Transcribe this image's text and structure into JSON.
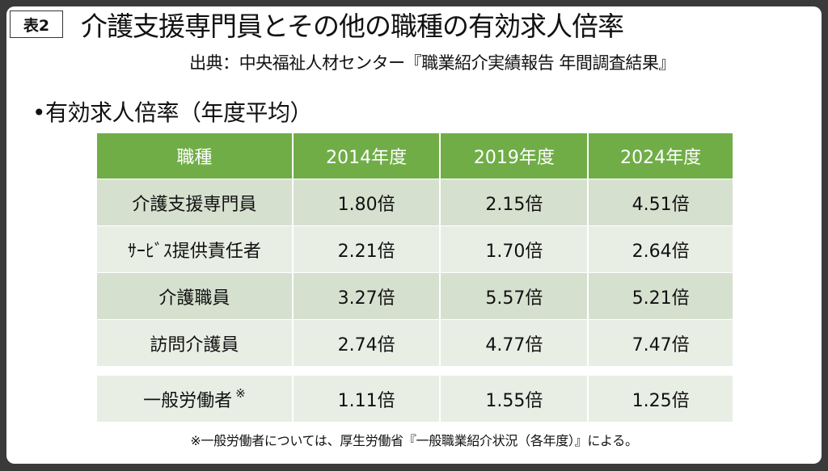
{
  "badge": "表2",
  "title": "介護支援専門員とその他の職種の有効求人倍率",
  "source": "出典：中央福祉人材センター『職業紹介実績報告 年間調査結果』",
  "bullet": "•有効求人倍率（年度平均）",
  "table": {
    "headers": [
      "職種",
      "2014年度",
      "2019年度",
      "2024年度"
    ],
    "rows": [
      {
        "job": "介護支援専門員",
        "v": [
          "1.80倍",
          "2.15倍",
          "4.51倍"
        ]
      },
      {
        "job": "ｻｰﾋﾞｽ提供責任者",
        "v": [
          "2.21倍",
          "1.70倍",
          "2.64倍"
        ]
      },
      {
        "job": "介護職員",
        "v": [
          "3.27倍",
          "5.57倍",
          "5.21倍"
        ]
      },
      {
        "job": "訪問介護員",
        "v": [
          "2.74倍",
          "4.77倍",
          "7.47倍"
        ]
      }
    ],
    "general": {
      "job": "一般労働者",
      "mark": "※",
      "v": [
        "1.11倍",
        "1.55倍",
        "1.25倍"
      ]
    }
  },
  "footnote": "※一般労働者については、厚生労働省『一般職業紹介状況（各年度）』による。",
  "colors": {
    "header": "#70ad47",
    "row_dark": "#d6e0cf",
    "row_light": "#e9eee5"
  }
}
